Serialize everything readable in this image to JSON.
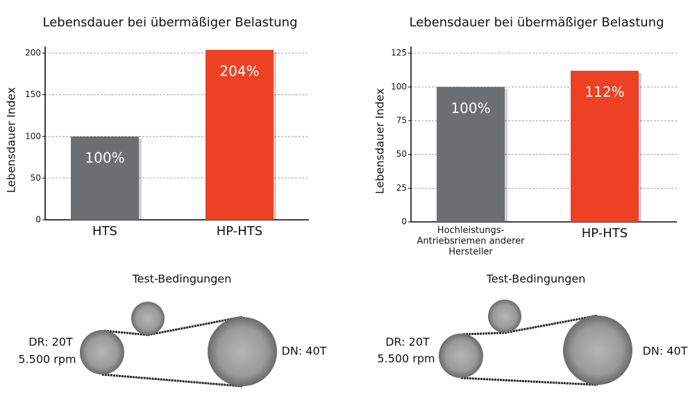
{
  "chart_data": [
    {
      "type": "bar",
      "title": "Lebensdauer bei übermäßiger Belastung",
      "y_label": "Lebensdauer Index",
      "categories": [
        "HTS",
        "HP-HTS"
      ],
      "values": [
        100,
        204
      ],
      "value_labels": [
        "100%",
        "204%"
      ],
      "colors": [
        "#6d6e70",
        "#ee4123"
      ],
      "ylim": [
        0,
        208
      ],
      "yticks": [
        0,
        50,
        100,
        150,
        200
      ],
      "grid": true
    },
    {
      "type": "bar",
      "title": "Lebensdauer bei übermäßiger Belastung",
      "y_label": "Lebensdauer Index",
      "categories": [
        "Hochleistungs-\nAntriebsriemen anderer\nHersteller",
        "HP-HTS"
      ],
      "values": [
        100,
        112
      ],
      "value_labels": [
        "100%",
        "112%"
      ],
      "colors": [
        "#6d6e70",
        "#ee4123"
      ],
      "ylim": [
        0,
        130
      ],
      "yticks": [
        0,
        25,
        50,
        75,
        100,
        125
      ],
      "grid": true
    }
  ],
  "diagrams": [
    {
      "title": "Test-Bedingungen",
      "driver": [
        "DR: 20T",
        "5.500 rpm"
      ],
      "driven": "DN: 40T"
    },
    {
      "title": "Test-Bedingungen",
      "driver": [
        "DR: 20T",
        "5.500 rpm"
      ],
      "driven": "DN: 40T"
    }
  ]
}
